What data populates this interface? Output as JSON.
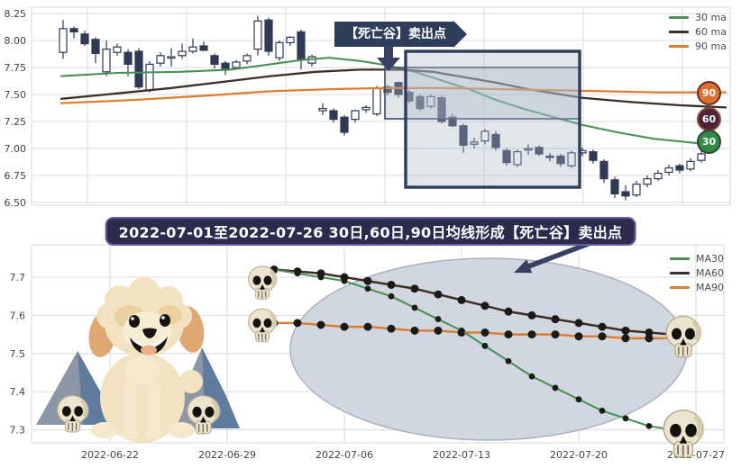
{
  "colors": {
    "ma30": "#4a9158",
    "ma60": "#3b2e26",
    "ma90": "#dd7e32",
    "candle": "#2f3a55",
    "grid": "#d8dbe0",
    "tick_text": "#444444",
    "banner_bg": "#2e3d59",
    "title_bg": "#2b2b4e",
    "title_border": "#6b5ba6",
    "highlight_fill": "rgba(170,182,198,0.35)",
    "box_border_small": "#3c4a66",
    "box_border_big": "#2e3d59",
    "ellipse_fill": "#ccd3dd",
    "ellipse_stroke": "#a9b1bc",
    "arrow": "#36425f",
    "dot": "#1c1a17",
    "skull_bone": "#ece4cf"
  },
  "top_chart": {
    "legend": [
      "30 ma",
      "60 ma",
      "90 ma"
    ],
    "annotation_label": "【死亡谷】卖出点",
    "badges": [
      {
        "label": "90",
        "fill": "#dd7030",
        "ring": "#63302a"
      },
      {
        "label": "60",
        "fill": "#4d2138",
        "ring": "#8a4f3d"
      },
      {
        "label": "30",
        "fill": "#2f8b45",
        "ring": "#2c4632"
      }
    ],
    "y_ticks": [
      "8.25",
      "8.00",
      "7.75",
      "7.50",
      "7.25",
      "7.00",
      "6.75",
      "6.50"
    ]
  },
  "title_banner": "2022-07-01至2022-07-26 30日,60日,90日均线形成【死亡谷】卖出点",
  "bottom_chart": {
    "legend": [
      "MA30",
      "MA60",
      "MA90"
    ],
    "y_ticks": [
      "7.7",
      "7.6",
      "7.5",
      "7.4",
      "7.3"
    ],
    "x_ticks": [
      "2022-06-22",
      "2022-06-29",
      "2022-07-06",
      "2022-07-13",
      "2022-07-20",
      "2022-07-27"
    ]
  },
  "chart_data": [
    {
      "type": "candlestick",
      "ylim": [
        6.45,
        8.3
      ],
      "y_ticks": [
        8.25,
        8.0,
        7.75,
        7.5,
        7.25,
        7.0,
        6.75,
        6.5
      ],
      "legend": [
        "30 ma",
        "60 ma",
        "90 ma"
      ],
      "annotation": "【死亡谷】卖出点",
      "candles": [
        [
          7.89,
          8.19,
          7.83,
          8.11
        ],
        [
          8.11,
          8.13,
          8.02,
          8.08
        ],
        [
          8.06,
          8.09,
          7.95,
          7.97
        ],
        [
          8.01,
          8.03,
          7.79,
          7.88
        ],
        [
          7.71,
          8.0,
          7.67,
          7.92
        ],
        [
          7.89,
          7.97,
          7.86,
          7.94
        ],
        [
          7.89,
          7.92,
          7.67,
          7.78
        ],
        [
          7.9,
          7.93,
          7.55,
          7.57
        ],
        [
          7.54,
          7.81,
          7.52,
          7.78
        ],
        [
          7.79,
          7.89,
          7.76,
          7.86
        ],
        [
          7.84,
          7.93,
          7.76,
          7.85
        ],
        [
          7.86,
          7.97,
          7.83,
          7.9
        ],
        [
          7.9,
          8.02,
          7.88,
          7.94
        ],
        [
          7.95,
          7.99,
          7.9,
          7.91
        ],
        [
          7.86,
          7.88,
          7.74,
          7.78
        ],
        [
          7.79,
          7.81,
          7.68,
          7.74
        ],
        [
          7.75,
          7.82,
          7.73,
          7.8
        ],
        [
          7.81,
          7.88,
          7.78,
          7.86
        ],
        [
          7.92,
          8.23,
          7.86,
          8.18
        ],
        [
          8.19,
          8.21,
          7.86,
          7.9
        ],
        [
          7.84,
          8.0,
          7.81,
          7.98
        ],
        [
          7.98,
          8.04,
          7.95,
          8.03
        ],
        [
          8.08,
          8.1,
          7.73,
          7.82
        ],
        [
          7.79,
          7.87,
          7.76,
          7.85
        ],
        [
          7.35,
          7.42,
          7.31,
          7.37
        ],
        [
          7.35,
          7.37,
          7.24,
          7.27
        ],
        [
          7.29,
          7.31,
          7.12,
          7.15
        ],
        [
          7.27,
          7.36,
          7.24,
          7.35
        ],
        [
          7.36,
          7.4,
          7.33,
          7.38
        ],
        [
          7.32,
          7.58,
          7.3,
          7.56
        ],
        [
          7.57,
          7.59,
          7.49,
          7.52
        ],
        [
          7.61,
          7.62,
          7.47,
          7.5
        ],
        [
          7.52,
          7.54,
          7.42,
          7.44
        ],
        [
          7.48,
          7.5,
          7.35,
          7.37
        ],
        [
          7.39,
          7.5,
          7.37,
          7.48
        ],
        [
          7.47,
          7.49,
          7.23,
          7.25
        ],
        [
          7.29,
          7.32,
          7.2,
          7.21
        ],
        [
          7.21,
          7.23,
          6.96,
          7.03
        ],
        [
          7.04,
          7.1,
          7.0,
          7.06
        ],
        [
          7.07,
          7.18,
          7.04,
          7.16
        ],
        [
          7.13,
          7.16,
          6.98,
          7.01
        ],
        [
          6.98,
          7.0,
          6.84,
          6.87
        ],
        [
          6.85,
          6.99,
          6.83,
          6.97
        ],
        [
          6.99,
          7.04,
          6.94,
          7.0
        ],
        [
          7.01,
          7.03,
          6.93,
          6.95
        ],
        [
          6.93,
          6.96,
          6.88,
          6.92
        ],
        [
          6.93,
          6.95,
          6.83,
          6.86
        ],
        [
          6.84,
          6.98,
          6.82,
          6.96
        ],
        [
          6.96,
          7.01,
          6.93,
          6.98
        ],
        [
          6.97,
          6.99,
          6.86,
          6.89
        ],
        [
          6.88,
          6.9,
          6.68,
          6.72
        ],
        [
          6.71,
          6.74,
          6.54,
          6.58
        ],
        [
          6.6,
          6.66,
          6.52,
          6.56
        ],
        [
          6.57,
          6.7,
          6.55,
          6.67
        ],
        [
          6.67,
          6.75,
          6.64,
          6.72
        ],
        [
          6.72,
          6.8,
          6.7,
          6.77
        ],
        [
          6.78,
          6.85,
          6.75,
          6.82
        ],
        [
          6.84,
          6.86,
          6.77,
          6.8
        ],
        [
          6.81,
          6.91,
          6.79,
          6.88
        ],
        [
          6.89,
          6.98,
          6.87,
          6.95
        ]
      ],
      "series": [
        {
          "name": "30 ma",
          "points": [
            [
              68,
              7.67
            ],
            [
              130,
              7.7
            ],
            [
              200,
              7.71
            ],
            [
              255,
              7.73
            ],
            [
              300,
              7.78
            ],
            [
              335,
              7.82
            ],
            [
              365,
              7.84
            ],
            [
              400,
              7.81
            ],
            [
              430,
              7.77
            ],
            [
              460,
              7.71
            ],
            [
              490,
              7.63
            ],
            [
              520,
              7.55
            ],
            [
              550,
              7.45
            ],
            [
              580,
              7.37
            ],
            [
              610,
              7.3
            ],
            [
              645,
              7.22
            ],
            [
              685,
              7.15
            ],
            [
              725,
              7.09
            ],
            [
              785,
              7.04
            ]
          ]
        },
        {
          "name": "60 ma",
          "points": [
            [
              68,
              7.46
            ],
            [
              130,
              7.51
            ],
            [
              190,
              7.56
            ],
            [
              250,
              7.62
            ],
            [
              300,
              7.67
            ],
            [
              350,
              7.71
            ],
            [
              400,
              7.73
            ],
            [
              445,
              7.73
            ],
            [
              480,
              7.71
            ],
            [
              515,
              7.66
            ],
            [
              550,
              7.61
            ],
            [
              585,
              7.55
            ],
            [
              615,
              7.51
            ],
            [
              645,
              7.47
            ],
            [
              700,
              7.43
            ],
            [
              755,
              7.4
            ],
            [
              805,
              7.38
            ]
          ]
        },
        {
          "name": "90 ma",
          "points": [
            [
              68,
              7.42
            ],
            [
              150,
              7.45
            ],
            [
              230,
              7.49
            ],
            [
              300,
              7.53
            ],
            [
              370,
              7.55
            ],
            [
              430,
              7.56
            ],
            [
              490,
              7.56
            ],
            [
              550,
              7.55
            ],
            [
              610,
              7.54
            ],
            [
              670,
              7.53
            ],
            [
              730,
              7.52
            ],
            [
              805,
              7.52
            ]
          ]
        }
      ]
    },
    {
      "type": "line",
      "ylim": [
        7.27,
        7.79
      ],
      "y_ticks": [
        7.7,
        7.6,
        7.5,
        7.4,
        7.3
      ],
      "dates": [
        "2022-07-01",
        "2022-07-04",
        "2022-07-05",
        "2022-07-06",
        "2022-07-07",
        "2022-07-08",
        "2022-07-11",
        "2022-07-12",
        "2022-07-13",
        "2022-07-14",
        "2022-07-15",
        "2022-07-18",
        "2022-07-19",
        "2022-07-20",
        "2022-07-21",
        "2022-07-22",
        "2022-07-25",
        "2022-07-26"
      ],
      "x_tick_labels": [
        {
          "label": "2022-06-22",
          "day": -7
        },
        {
          "label": "2022-06-29",
          "day": -2
        },
        {
          "label": "2022-07-06",
          "day": 3
        },
        {
          "label": "2022-07-13",
          "day": 8
        },
        {
          "label": "2022-07-20",
          "day": 13
        },
        {
          "label": "2022-07-27",
          "day": 18
        }
      ],
      "series": [
        {
          "name": "MA30",
          "values": [
            7.72,
            7.71,
            7.7,
            7.69,
            7.67,
            7.65,
            7.62,
            7.59,
            7.56,
            7.52,
            7.48,
            7.44,
            7.41,
            7.38,
            7.35,
            7.33,
            7.31,
            7.3
          ]
        },
        {
          "name": "MA60",
          "values": [
            7.72,
            7.715,
            7.71,
            7.7,
            7.69,
            7.68,
            7.67,
            7.655,
            7.64,
            7.625,
            7.61,
            7.6,
            7.59,
            7.58,
            7.57,
            7.56,
            7.555,
            7.55
          ]
        },
        {
          "name": "MA90",
          "values": [
            7.58,
            7.58,
            7.575,
            7.57,
            7.57,
            7.565,
            7.56,
            7.56,
            7.555,
            7.555,
            7.55,
            7.55,
            7.55,
            7.545,
            7.545,
            7.54,
            7.54,
            7.54
          ]
        }
      ],
      "skull_markers": [
        "ma30-ma60-start",
        "ma90-start",
        "ma60-ma90-end",
        "ma30-end"
      ]
    }
  ]
}
